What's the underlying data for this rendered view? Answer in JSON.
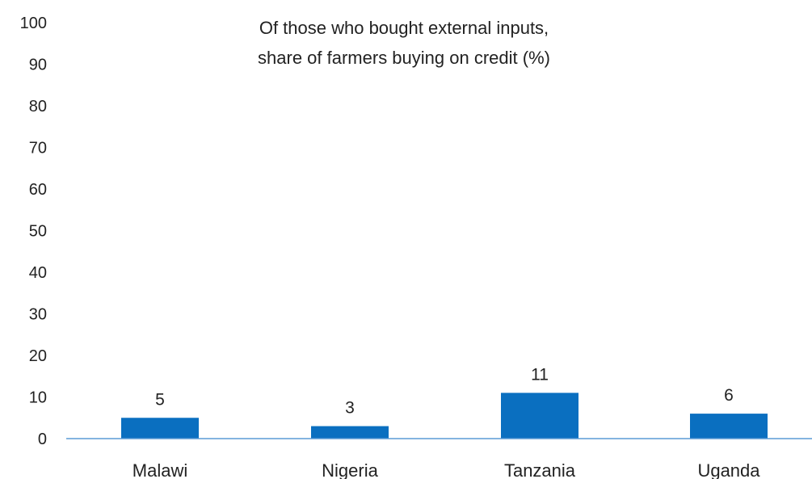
{
  "chart_data": {
    "type": "bar",
    "title_lines": [
      "Of those who bought external inputs,",
      "share of farmers buying on credit (%)"
    ],
    "categories": [
      "Malawi",
      "Nigeria",
      "Tanzania",
      "Uganda"
    ],
    "values": [
      5,
      3,
      11,
      6
    ],
    "data_labels": [
      "5",
      "3",
      "11",
      "6"
    ],
    "ylim": [
      0,
      100
    ],
    "yticks": [
      "0",
      "10",
      "20",
      "30",
      "40",
      "50",
      "60",
      "70",
      "80",
      "90",
      "100"
    ],
    "xlabel": "",
    "ylabel": "",
    "grid": false,
    "legend": "none",
    "colors": {
      "bar": "#0a6fc0",
      "axis": "#5b9bd5"
    }
  }
}
